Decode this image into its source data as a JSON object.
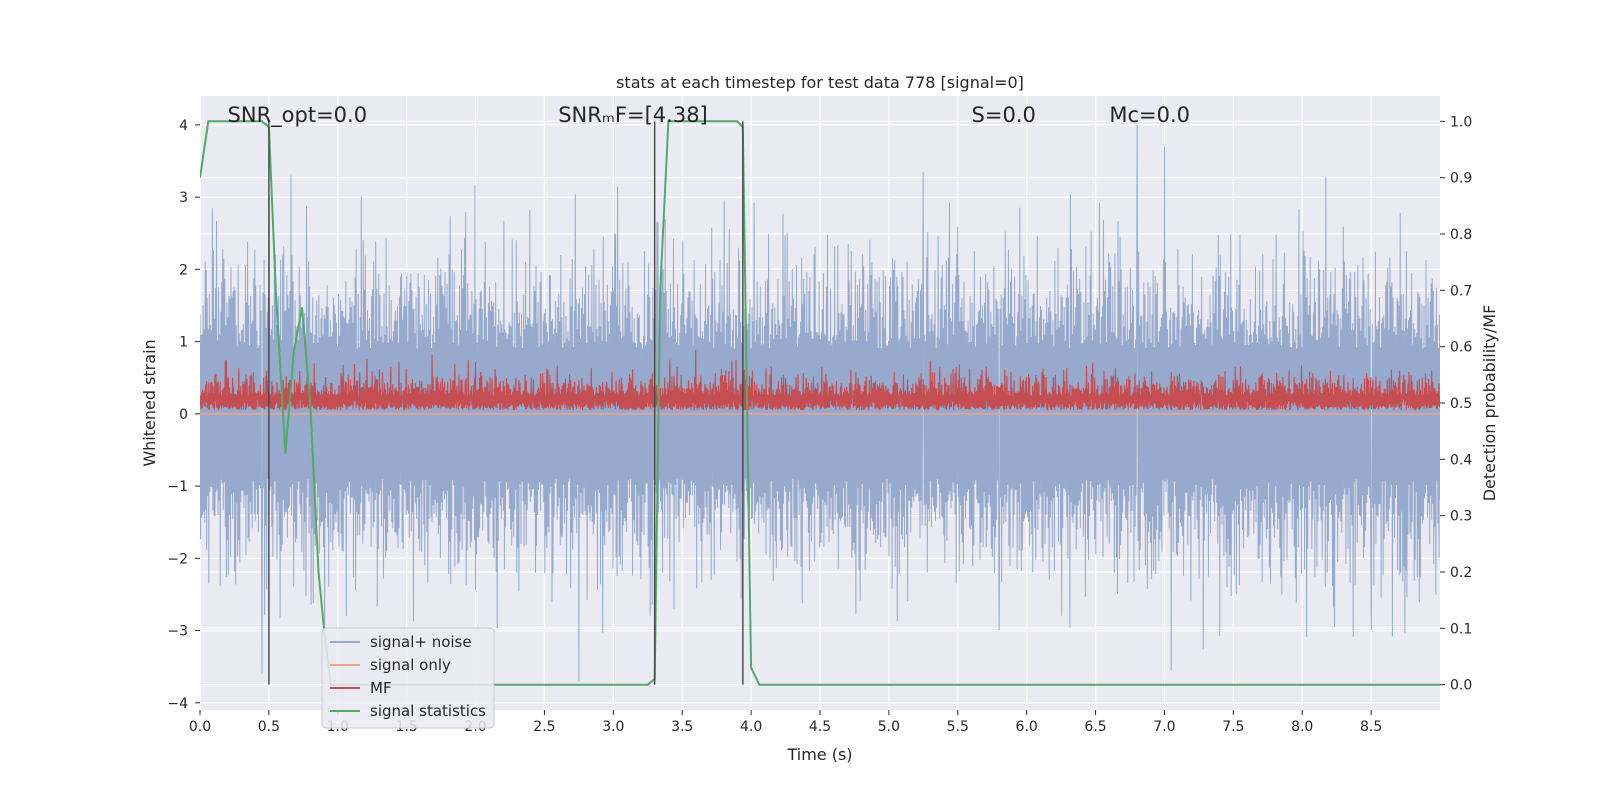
{
  "chart_data": {
    "type": "line",
    "title": "stats at each timestep for test data 778 [signal=0]",
    "xlabel": "Time (s)",
    "ylabel": "Whitened strain",
    "y2label": "Detection probability/MF",
    "xlim": [
      0,
      9
    ],
    "ylim": [
      -4.1,
      4.4
    ],
    "y2lim": [
      -0.045,
      1.045
    ],
    "x_ticks": [
      0.0,
      0.5,
      1.0,
      1.5,
      2.0,
      2.5,
      3.0,
      3.5,
      4.0,
      4.5,
      5.0,
      5.5,
      6.0,
      6.5,
      7.0,
      7.5,
      8.0,
      8.5
    ],
    "x_tick_labels": [
      "0.0",
      "0.5",
      "1.0",
      "1.5",
      "2.0",
      "2.5",
      "3.0",
      "3.5",
      "4.0",
      "4.5",
      "5.0",
      "5.5",
      "6.0",
      "6.5",
      "7.0",
      "7.5",
      "8.0",
      "8.5"
    ],
    "y_ticks": [
      4,
      3,
      2,
      1,
      0,
      -1,
      -2,
      -3,
      -4
    ],
    "y_tick_labels": [
      "4",
      "3",
      "2",
      "1",
      "0",
      "−1",
      "−2",
      "−3",
      "−4"
    ],
    "y2_ticks": [
      1.0,
      0.9,
      0.8,
      0.7,
      0.6,
      0.5,
      0.4,
      0.3,
      0.2,
      0.1,
      0.0
    ],
    "y2_tick_labels": [
      "1.0",
      "0.9",
      "0.8",
      "0.7",
      "0.6",
      "0.5",
      "0.4",
      "0.3",
      "0.2",
      "0.1",
      "0.0"
    ],
    "grid": true,
    "legend_position": "bottom-left",
    "annotations": [
      {
        "text": "SNR_opt=0.0",
        "x": 0.2
      },
      {
        "text": "SNRₘF=[4.38]",
        "x": 2.6
      },
      {
        "text": "S=0.0",
        "x": 5.6
      },
      {
        "text": "Mᴄ=0.0",
        "x": 6.6
      }
    ],
    "vlines": [
      {
        "x": 0.5,
        "y2_from": 0.0,
        "y2_to": 1.0
      },
      {
        "x": 3.3,
        "y2_from": 0.0,
        "y2_to": 1.0
      },
      {
        "x": 3.94,
        "y2_from": 0.0,
        "y2_to": 1.0
      }
    ],
    "series": [
      {
        "name": "signal+ noise",
        "color": "#97a9cc",
        "axis": "left",
        "kind": "noise",
        "amplitude_rms": 1.0,
        "peaks": [
          [
            0.45,
            -3.6
          ],
          [
            0.66,
            3.3
          ],
          [
            2.75,
            -3.7
          ],
          [
            5.25,
            3.35
          ],
          [
            5.8,
            -3.0
          ],
          [
            6.8,
            4.0
          ],
          [
            7.0,
            3.7
          ],
          [
            7.05,
            -3.55
          ],
          [
            8.5,
            -3.0
          ]
        ]
      },
      {
        "name": "signal only",
        "color": "#e8a58c",
        "axis": "left",
        "kind": "constant",
        "value": 0.0
      },
      {
        "name": "MF",
        "color": "#c44e52",
        "axis": "left",
        "kind": "envelope",
        "baseline": 0.05,
        "typical_top": 0.6,
        "max_top": 1.0
      },
      {
        "name": "signal statistics",
        "color": "#55a868",
        "axis": "right",
        "kind": "line",
        "x": [
          0.0,
          0.06,
          0.45,
          0.5,
          0.55,
          0.62,
          0.68,
          0.74,
          0.8,
          0.86,
          0.9,
          0.95,
          3.25,
          3.3,
          3.34,
          3.4,
          3.9,
          3.94,
          4.0,
          4.06,
          9.0
        ],
        "y": [
          0.9,
          1.0,
          1.0,
          0.99,
          0.7,
          0.41,
          0.59,
          0.67,
          0.5,
          0.2,
          0.1,
          0.0,
          0.0,
          0.01,
          0.7,
          1.0,
          1.0,
          0.99,
          0.03,
          0.0,
          0.0
        ]
      }
    ]
  }
}
